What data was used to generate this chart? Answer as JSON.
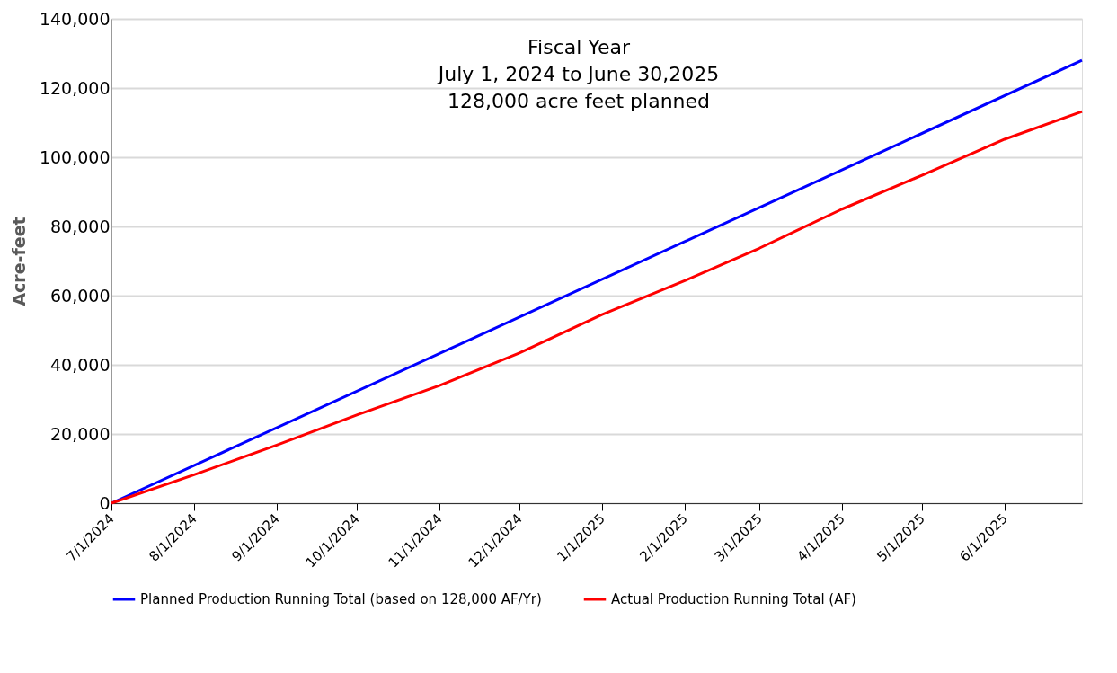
{
  "chart_data": {
    "type": "line",
    "title": "Fiscal Year\nJuly 1, 2024 to June 30,2025\n128,000 acre feet planned",
    "ylabel": "Acre-feet",
    "xlim": [
      "2024-07-01",
      "2025-06-30"
    ],
    "xticks": [
      {
        "value": "2024-07-01",
        "label": "7/1/2024"
      },
      {
        "value": "2024-08-01",
        "label": "8/1/2024"
      },
      {
        "value": "2024-09-01",
        "label": "9/1/2024"
      },
      {
        "value": "2024-10-01",
        "label": "10/1/2024"
      },
      {
        "value": "2024-11-01",
        "label": "11/1/2024"
      },
      {
        "value": "2024-12-01",
        "label": "12/1/2024"
      },
      {
        "value": "2025-01-01",
        "label": "1/1/2025"
      },
      {
        "value": "2025-02-01",
        "label": "2/1/2025"
      },
      {
        "value": "2025-03-01",
        "label": "3/1/2025"
      },
      {
        "value": "2025-04-01",
        "label": "4/1/2025"
      },
      {
        "value": "2025-05-01",
        "label": "5/1/2025"
      },
      {
        "value": "2025-06-01",
        "label": "6/1/2025"
      }
    ],
    "ylim": [
      0,
      140000
    ],
    "yticks": [
      {
        "value": 0,
        "label": "0"
      },
      {
        "value": 20000,
        "label": "20,000"
      },
      {
        "value": 40000,
        "label": "40,000"
      },
      {
        "value": 60000,
        "label": "60,000"
      },
      {
        "value": 80000,
        "label": "80,000"
      },
      {
        "value": 100000,
        "label": "100,000"
      },
      {
        "value": 120000,
        "label": "120,000"
      },
      {
        "value": 140000,
        "label": "140,000"
      }
    ],
    "grid": "y",
    "legend": "bottom",
    "marker": "none",
    "line_style": "solid",
    "series": [
      {
        "name": "Planned Production Running Total (based on 128,000 AF/Yr)",
        "color": "#0000ff",
        "x": [
          "2024-07-01",
          "2025-06-30"
        ],
        "values": [
          0,
          128000
        ]
      },
      {
        "name": "Actual Production Running Total (AF)",
        "color": "#ff0000",
        "x": [
          "2024-07-01",
          "2024-08-01",
          "2024-09-01",
          "2024-10-01",
          "2024-11-01",
          "2024-12-01",
          "2025-01-01",
          "2025-02-01",
          "2025-03-01",
          "2025-04-01",
          "2025-05-01",
          "2025-06-01",
          "2025-06-30"
        ],
        "values": [
          0,
          8200,
          16800,
          25500,
          34000,
          43400,
          54500,
          64300,
          73700,
          85000,
          94800,
          105200,
          113200
        ]
      }
    ]
  }
}
